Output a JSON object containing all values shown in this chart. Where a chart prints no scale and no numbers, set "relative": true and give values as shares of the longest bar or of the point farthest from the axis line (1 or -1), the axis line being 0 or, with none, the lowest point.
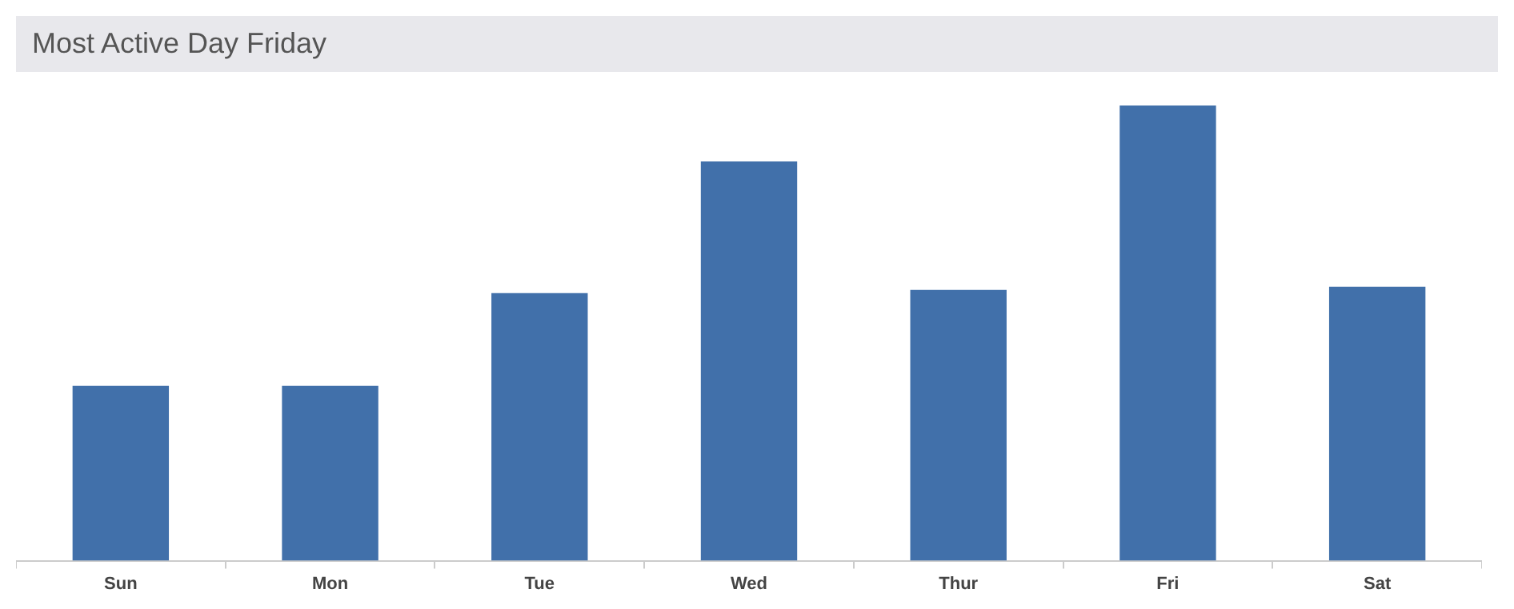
{
  "chart_data": {
    "type": "bar",
    "title": "Most Active Day Friday",
    "categories": [
      "Sun",
      "Mon",
      "Tue",
      "Wed",
      "Thur",
      "Fri",
      "Sat"
    ],
    "values": [
      0.384,
      0.384,
      0.588,
      0.877,
      0.595,
      1,
      0.602
    ],
    "color": "#4170aa",
    "relative": true,
    "grid": false,
    "legend": false
  }
}
